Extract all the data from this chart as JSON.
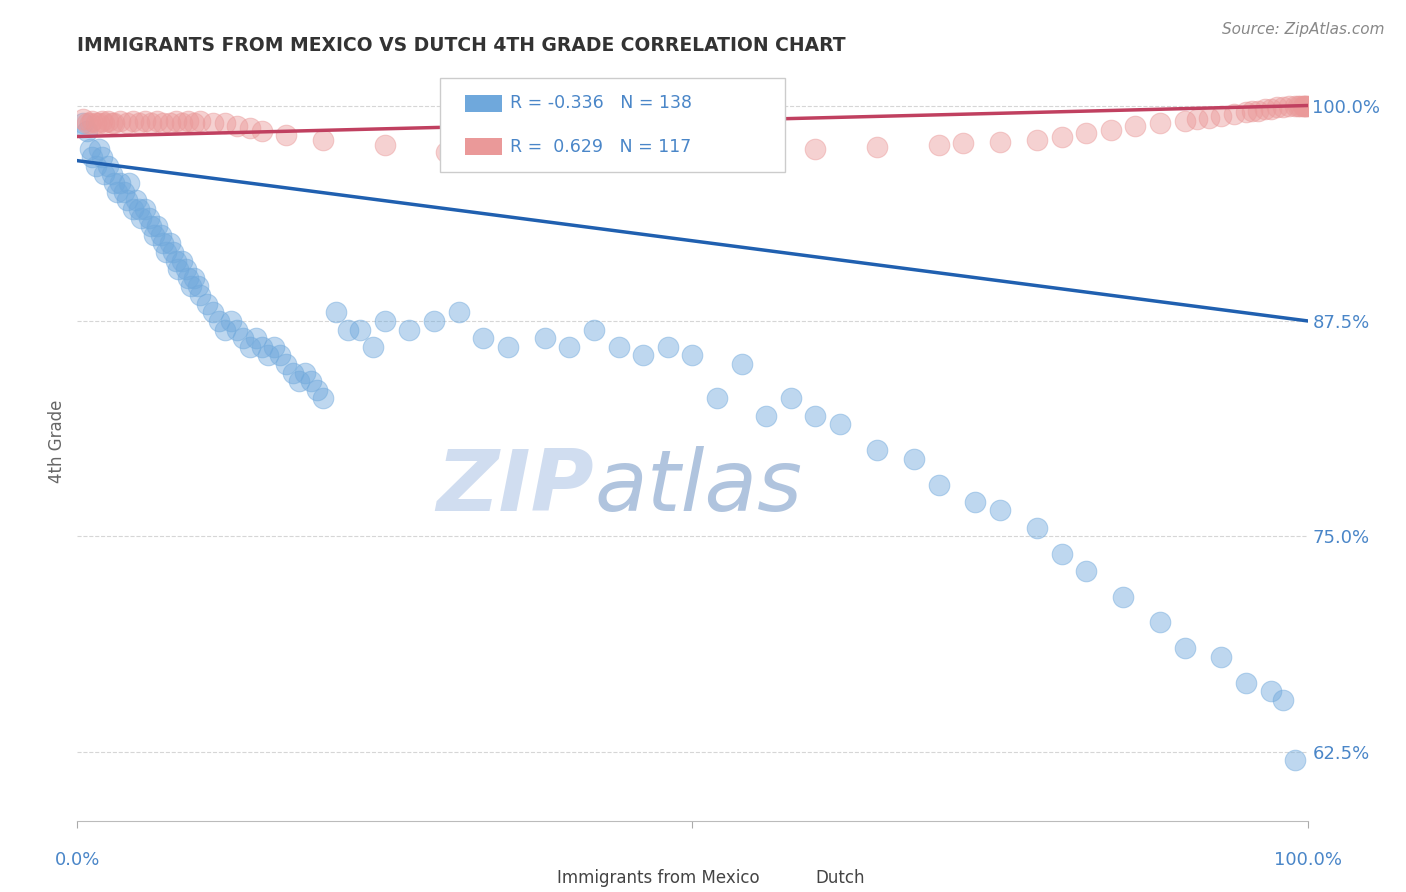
{
  "title": "IMMIGRANTS FROM MEXICO VS DUTCH 4TH GRADE CORRELATION CHART",
  "source_text": "Source: ZipAtlas.com",
  "ylabel": "4th Grade",
  "blue_R": "-0.336",
  "blue_N": "138",
  "pink_R": "0.629",
  "pink_N": "117",
  "blue_color": "#6fa8dc",
  "pink_color": "#ea9999",
  "blue_line_color": "#2060b0",
  "pink_line_color": "#c04060",
  "grid_color": "#cccccc",
  "title_color": "#333333",
  "axis_label_color": "#4a86c8",
  "watermark_zip_color": "#d0ddf0",
  "watermark_atlas_color": "#b0c4de",
  "xlim": [
    0.0,
    1.0
  ],
  "ylim": [
    0.585,
    1.025
  ],
  "ytick_vals": [
    1.0,
    0.875,
    0.75,
    0.625
  ],
  "ytick_labels": [
    "100.0%",
    "87.5%",
    "75.0%",
    "62.5%"
  ],
  "blue_trend_x0": 0.0,
  "blue_trend_y0": 0.968,
  "blue_trend_x1": 1.0,
  "blue_trend_y1": 0.875,
  "pink_trend_x0": 0.0,
  "pink_trend_y0": 0.982,
  "pink_trend_x1": 1.0,
  "pink_trend_y1": 1.0,
  "blue_x": [
    0.005,
    0.008,
    0.01,
    0.012,
    0.015,
    0.018,
    0.02,
    0.022,
    0.025,
    0.028,
    0.03,
    0.032,
    0.035,
    0.038,
    0.04,
    0.042,
    0.045,
    0.048,
    0.05,
    0.052,
    0.055,
    0.058,
    0.06,
    0.062,
    0.065,
    0.068,
    0.07,
    0.072,
    0.075,
    0.078,
    0.08,
    0.082,
    0.085,
    0.088,
    0.09,
    0.092,
    0.095,
    0.098,
    0.1,
    0.105,
    0.11,
    0.115,
    0.12,
    0.125,
    0.13,
    0.135,
    0.14,
    0.145,
    0.15,
    0.155,
    0.16,
    0.165,
    0.17,
    0.175,
    0.18,
    0.185,
    0.19,
    0.195,
    0.2,
    0.21,
    0.22,
    0.23,
    0.24,
    0.25,
    0.27,
    0.29,
    0.31,
    0.33,
    0.35,
    0.38,
    0.4,
    0.42,
    0.44,
    0.46,
    0.48,
    0.5,
    0.52,
    0.54,
    0.56,
    0.58,
    0.6,
    0.62,
    0.65,
    0.68,
    0.7,
    0.73,
    0.75,
    0.78,
    0.8,
    0.82,
    0.85,
    0.88,
    0.9,
    0.93,
    0.95,
    0.97,
    0.98,
    0.99
  ],
  "blue_y": [
    0.99,
    0.985,
    0.975,
    0.97,
    0.965,
    0.975,
    0.97,
    0.96,
    0.965,
    0.96,
    0.955,
    0.95,
    0.955,
    0.95,
    0.945,
    0.955,
    0.94,
    0.945,
    0.94,
    0.935,
    0.94,
    0.935,
    0.93,
    0.925,
    0.93,
    0.925,
    0.92,
    0.915,
    0.92,
    0.915,
    0.91,
    0.905,
    0.91,
    0.905,
    0.9,
    0.895,
    0.9,
    0.895,
    0.89,
    0.885,
    0.88,
    0.875,
    0.87,
    0.875,
    0.87,
    0.865,
    0.86,
    0.865,
    0.86,
    0.855,
    0.86,
    0.855,
    0.85,
    0.845,
    0.84,
    0.845,
    0.84,
    0.835,
    0.83,
    0.88,
    0.87,
    0.87,
    0.86,
    0.875,
    0.87,
    0.875,
    0.88,
    0.865,
    0.86,
    0.865,
    0.86,
    0.87,
    0.86,
    0.855,
    0.86,
    0.855,
    0.83,
    0.85,
    0.82,
    0.83,
    0.82,
    0.815,
    0.8,
    0.795,
    0.78,
    0.77,
    0.765,
    0.755,
    0.74,
    0.73,
    0.715,
    0.7,
    0.685,
    0.68,
    0.665,
    0.66,
    0.655,
    0.62
  ],
  "pink_x": [
    0.005,
    0.008,
    0.01,
    0.012,
    0.015,
    0.018,
    0.02,
    0.022,
    0.025,
    0.028,
    0.03,
    0.035,
    0.04,
    0.045,
    0.05,
    0.055,
    0.06,
    0.065,
    0.07,
    0.075,
    0.08,
    0.085,
    0.09,
    0.095,
    0.1,
    0.11,
    0.12,
    0.13,
    0.14,
    0.15,
    0.17,
    0.2,
    0.25,
    0.3,
    0.6,
    0.65,
    0.7,
    0.72,
    0.75,
    0.78,
    0.8,
    0.82,
    0.84,
    0.86,
    0.88,
    0.9,
    0.91,
    0.92,
    0.93,
    0.94,
    0.95,
    0.955,
    0.96,
    0.965,
    0.97,
    0.975,
    0.98,
    0.985,
    0.99,
    0.992,
    0.994,
    0.996,
    0.997,
    0.998,
    0.999,
    1.0
  ],
  "pink_y": [
    0.992,
    0.99,
    0.99,
    0.991,
    0.99,
    0.99,
    0.991,
    0.99,
    0.991,
    0.99,
    0.99,
    0.991,
    0.99,
    0.991,
    0.99,
    0.991,
    0.99,
    0.991,
    0.99,
    0.99,
    0.991,
    0.99,
    0.991,
    0.99,
    0.991,
    0.99,
    0.99,
    0.988,
    0.987,
    0.985,
    0.983,
    0.98,
    0.977,
    0.973,
    0.975,
    0.976,
    0.977,
    0.978,
    0.979,
    0.98,
    0.982,
    0.984,
    0.986,
    0.988,
    0.99,
    0.991,
    0.992,
    0.993,
    0.994,
    0.995,
    0.996,
    0.997,
    0.997,
    0.998,
    0.998,
    0.999,
    0.999,
    1.0,
    1.0,
    1.0,
    1.0,
    1.0,
    1.0,
    1.0,
    1.0,
    1.0
  ]
}
